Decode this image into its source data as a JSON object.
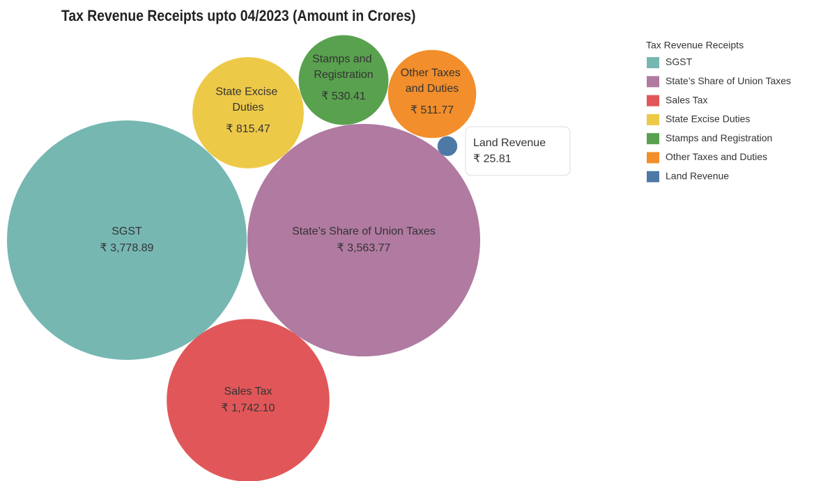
{
  "chart_data": {
    "type": "bubble",
    "title": "Tax Revenue Receipts upto 04/2023 (Amount in Crores)",
    "legend_title": "Tax Revenue Receipts",
    "categories": [
      "SGST",
      "State’s Share of Union Taxes",
      "Sales Tax",
      "State Excise Duties",
      "Stamps and Registration",
      "Other Taxes and Duties",
      "Land Revenue"
    ],
    "values": [
      3778.89,
      3563.77,
      1742.1,
      815.47,
      530.41,
      511.77,
      25.81
    ],
    "value_labels": [
      "₹ 3,778.89",
      "₹ 3,563.77",
      "₹ 1,742.10",
      "₹ 815.47",
      "₹ 530.41",
      "₹ 511.77",
      "₹ 25.81"
    ],
    "colors": [
      "#76b7b2",
      "#b07aa1",
      "#e15759",
      "#edc948",
      "#59a14f",
      "#f28e2b",
      "#4e79a7"
    ],
    "legend_position": "right"
  }
}
